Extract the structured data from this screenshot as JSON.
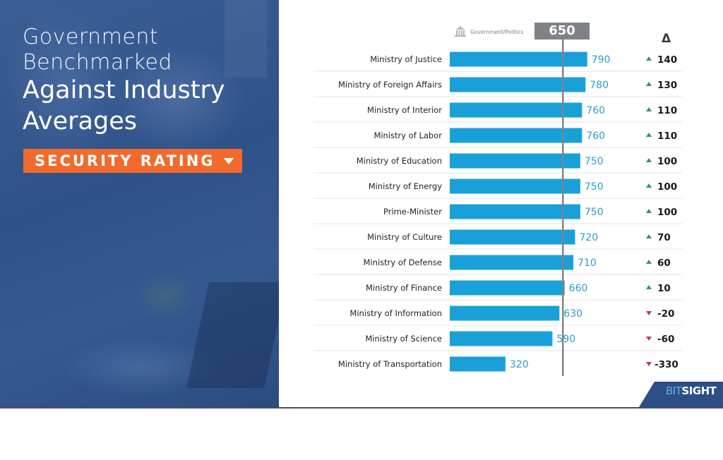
{
  "slide": {
    "title_line1": "Government",
    "title_line2": "Benchmarked",
    "title_line3": "Against Industry",
    "title_line4": "Averages",
    "metric_selector": "SECURITY RATING",
    "legend_label": "Government/Politics",
    "legend_icon": "government-building-icon",
    "average_value": "650",
    "delta_header": "Δ",
    "logo": {
      "brand_part1": "BIT",
      "brand_part2": "SIGHT"
    }
  },
  "colors": {
    "bar": "#1aa0d8",
    "value_text": "#2e9ccc",
    "up": "#2f8f88",
    "down": "#c0394b",
    "accent": "#f26b2c",
    "panel": "#2f5288",
    "average_line": "#808488"
  },
  "chart_data": {
    "type": "bar",
    "orientation": "horizontal",
    "title": "Government Benchmarked Against Industry Averages",
    "metric": "SECURITY RATING",
    "xlim": [
      0,
      800
    ],
    "reference_line": {
      "label": "Government/Politics",
      "value": 650
    },
    "categories": [
      "Ministry of Justice",
      "Ministry of Foreign Affairs",
      "Ministry of Interior",
      "Ministry of Labor",
      "Ministry of Education",
      "Ministry of Energy",
      "Prime-Minister",
      "Ministry of Culture",
      "Ministry of Defense",
      "Ministry of Finance",
      "Ministry of Information",
      "Ministry of Science",
      "Ministry of Transportation"
    ],
    "values": [
      790,
      780,
      760,
      760,
      750,
      750,
      750,
      720,
      710,
      660,
      630,
      590,
      320
    ],
    "deltas": [
      140,
      130,
      110,
      110,
      100,
      100,
      100,
      70,
      60,
      10,
      -20,
      -60,
      -330
    ]
  }
}
